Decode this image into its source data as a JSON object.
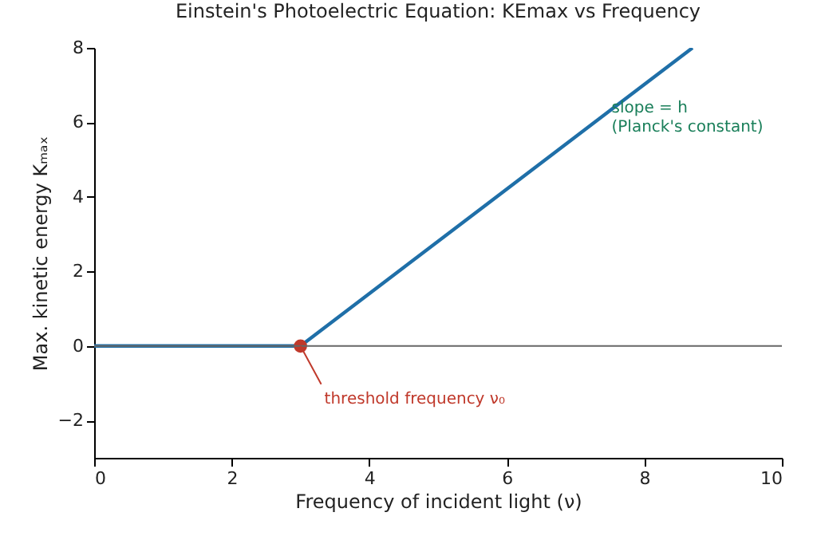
{
  "chart_data": {
    "type": "line",
    "title": "Einstein's Photoelectric Equation: KEmax vs Frequency",
    "xlabel": "Frequency of incident light (ν)",
    "ylabel": "Max. kinetic energy Kₘₐₓ",
    "series": [
      {
        "color": "#1f6fa8",
        "x": [
          0,
          3,
          8.7
        ],
        "values": [
          0,
          0,
          8
        ]
      },
      {
        "type": "scatter",
        "color": "#c0392b",
        "x": [
          3
        ],
        "values": [
          0
        ]
      }
    ],
    "xlim": [
      0,
      10
    ],
    "xticks": [
      0,
      2,
      4,
      6,
      8,
      10
    ],
    "ylim": [
      -3,
      8
    ],
    "yticks": [
      -2,
      0,
      2,
      4,
      6,
      8
    ],
    "ref_lines": [
      {
        "axis": "y",
        "value": 0,
        "color": "#666666"
      }
    ],
    "annotations": [
      {
        "text": "threshold frequency ν₀",
        "x": 3,
        "y": 0
      },
      {
        "text": "slope = h\n(Planck's constant)",
        "x": 7.5,
        "y": 6.3
      }
    ],
    "grid": false,
    "line_style": "solid"
  }
}
